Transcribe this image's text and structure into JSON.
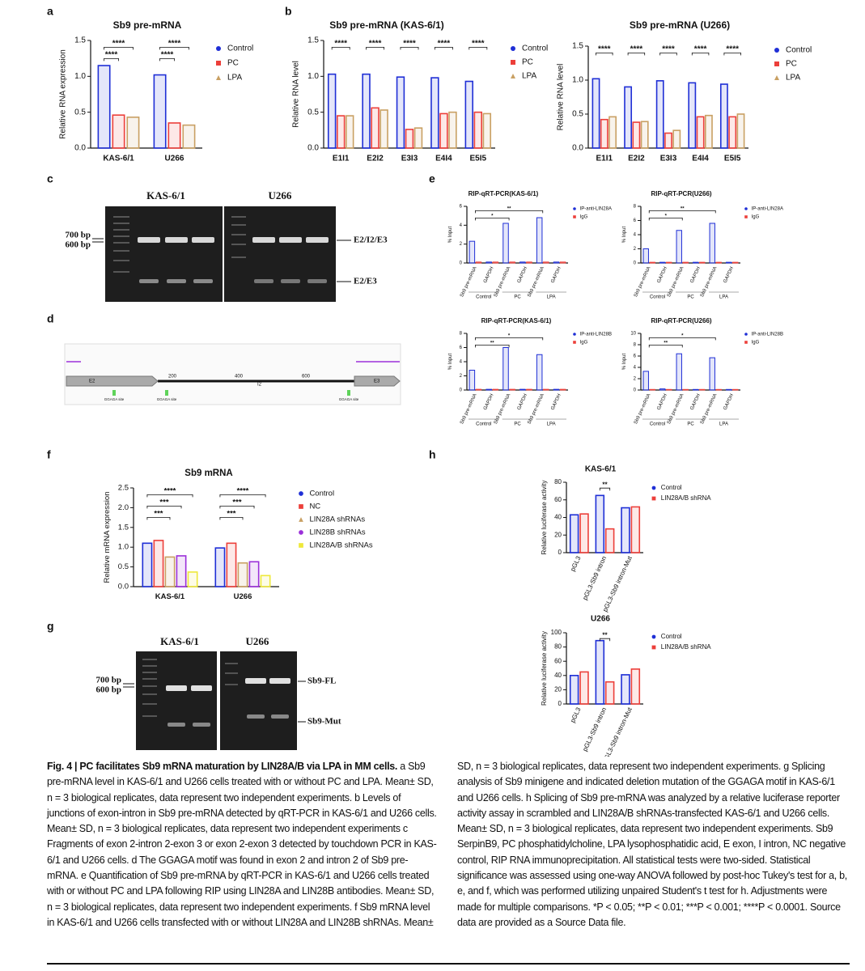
{
  "panel_labels": [
    "a",
    "b",
    "c",
    "d",
    "e",
    "f",
    "g",
    "h"
  ],
  "chart_data": [
    {
      "type": "bar",
      "title": "Sb9 pre-mRNA",
      "ylabel": "Relative RNA expression",
      "categories": [
        "KAS-6/1",
        "U266"
      ],
      "series": [
        {
          "name": "Control",
          "color": "#1f2fd6",
          "values": [
            1.15,
            1.02
          ]
        },
        {
          "name": "PC",
          "color": "#ec3f3a",
          "values": [
            0.46,
            0.35
          ]
        },
        {
          "name": "LPA",
          "color": "#c9a063",
          "values": [
            0.43,
            0.32
          ]
        }
      ],
      "ylim": [
        0,
        1.5
      ],
      "yticks": [
        {
          "value": 0,
          "label": "0.0"
        },
        0.5,
        {
          "value": 1,
          "label": "1.0"
        },
        1.5
      ],
      "annotations": [
        [
          "****",
          "****"
        ],
        [
          "****",
          "****"
        ]
      ]
    },
    {
      "type": "bar",
      "title": "Sb9 pre-mRNA (KAS-6/1)",
      "ylabel": "Relative RNA level",
      "categories": [
        "E1I1",
        "E2I2",
        "E3I3",
        "E4I4",
        "E5I5"
      ],
      "series": [
        {
          "name": "Control",
          "color": "#1f2fd6",
          "values": [
            1.03,
            1.03,
            0.99,
            0.98,
            0.93
          ]
        },
        {
          "name": "PC",
          "color": "#ec3f3a",
          "values": [
            0.45,
            0.56,
            0.26,
            0.48,
            0.5
          ]
        },
        {
          "name": "LPA",
          "color": "#c9a063",
          "values": [
            0.45,
            0.53,
            0.28,
            0.5,
            0.48
          ]
        }
      ],
      "ylim": [
        0,
        1.5
      ],
      "yticks": [
        {
          "value": 0,
          "label": "0.0"
        },
        0.5,
        {
          "value": 1,
          "label": "1.0"
        },
        1.5
      ],
      "annotations": [
        [
          "****"
        ],
        [
          "****"
        ],
        [
          "****"
        ],
        [
          "****"
        ],
        [
          "****"
        ]
      ]
    },
    {
      "type": "bar",
      "title": "Sb9 pre-mRNA (U266)",
      "ylabel": "Relative RNA level",
      "categories": [
        "E1I1",
        "E2I2",
        "E3I3",
        "E4I4",
        "E5I5"
      ],
      "series": [
        {
          "name": "Control",
          "color": "#1f2fd6",
          "values": [
            1.02,
            0.9,
            0.99,
            0.96,
            0.94
          ]
        },
        {
          "name": "PC",
          "color": "#ec3f3a",
          "values": [
            0.42,
            0.38,
            0.22,
            0.46,
            0.46
          ]
        },
        {
          "name": "LPA",
          "color": "#c9a063",
          "values": [
            0.46,
            0.39,
            0.26,
            0.48,
            0.5
          ]
        }
      ],
      "ylim": [
        0,
        1.5
      ],
      "yticks": [
        {
          "value": 0,
          "label": "0.0"
        },
        0.5,
        {
          "value": 1,
          "label": "1.0"
        },
        1.5
      ],
      "annotations": [
        [
          "****"
        ],
        [
          "****"
        ],
        [
          "****"
        ],
        [
          "****"
        ],
        [
          "****"
        ]
      ]
    },
    {
      "type": "bar",
      "title": "RIP-qRT-PCR(KAS-6/1)",
      "ylabel": "% Input",
      "categories": [
        "Sb9 pre-mRNA",
        "GAPDH",
        "Sb9 pre-mRNA",
        "GAPDH",
        "Sb9 pre-mRNA",
        "GAPDH"
      ],
      "groups": [
        "Control",
        "PC",
        "LPA"
      ],
      "series": [
        {
          "name": "IP-anti-LIN28A",
          "color": "#1f2fd6",
          "values": [
            2.3,
            0.1,
            4.2,
            0.1,
            4.8,
            0.1
          ]
        },
        {
          "name": "IgG",
          "color": "#ec3f3a",
          "values": [
            0.1,
            0.1,
            0.1,
            0.1,
            0.1,
            0.1
          ]
        }
      ],
      "ylim": [
        0,
        6
      ],
      "yticks": [
        0,
        2,
        4,
        6
      ],
      "annotations": [
        [
          "*",
          "**"
        ]
      ]
    },
    {
      "type": "bar",
      "title": "RIP-qRT-PCR(U266)",
      "ylabel": "% Input",
      "categories": [
        "Sb9 pre-mRNA",
        "GAPDH",
        "Sb9 pre-mRNA",
        "GAPDH",
        "Sb9 pre-mRNA",
        "GAPDH"
      ],
      "groups": [
        "Control",
        "PC",
        "LPA"
      ],
      "series": [
        {
          "name": "IP-anti-LIN28A",
          "color": "#1f2fd6",
          "values": [
            2.0,
            0.1,
            4.6,
            0.1,
            5.6,
            0.1
          ]
        },
        {
          "name": "IgG",
          "color": "#ec3f3a",
          "values": [
            0.1,
            0.1,
            0.1,
            0.1,
            0.1,
            0.1
          ]
        }
      ],
      "ylim": [
        0,
        8
      ],
      "yticks": [
        0,
        2,
        4,
        6,
        8
      ],
      "annotations": [
        [
          "*",
          "**"
        ]
      ]
    },
    {
      "type": "bar",
      "title": "RIP-qRT-PCR(KAS-6/1)",
      "ylabel": "% Input",
      "categories": [
        "Sb9 pre-mRNA",
        "GAPDH",
        "Sb9 pre-mRNA",
        "GAPDH",
        "Sb9 pre-mRNA",
        "GAPDH"
      ],
      "groups": [
        "Control",
        "PC",
        "LPA"
      ],
      "series": [
        {
          "name": "IP-anti-LIN28B",
          "color": "#1f2fd6",
          "values": [
            2.8,
            0.1,
            6.0,
            0.1,
            5.0,
            0.1
          ]
        },
        {
          "name": "IgG",
          "color": "#ec3f3a",
          "values": [
            0.1,
            0.1,
            0.1,
            0.1,
            0.1,
            0.1
          ]
        }
      ],
      "ylim": [
        0,
        8
      ],
      "yticks": [
        0,
        2,
        4,
        6,
        8
      ],
      "annotations": [
        [
          "**",
          "*"
        ]
      ]
    },
    {
      "type": "bar",
      "title": "RIP-qRT-PCR(U266)",
      "ylabel": "% Input",
      "categories": [
        "Sb9 pre-mRNA",
        "GAPDH",
        "Sb9 pre-mRNA",
        "GAPDH",
        "Sb9 pre-mRNA",
        "GAPDH"
      ],
      "groups": [
        "Control",
        "PC",
        "LPA"
      ],
      "series": [
        {
          "name": "IP-anti-LIN28B",
          "color": "#1f2fd6",
          "values": [
            3.3,
            0.2,
            6.4,
            0.1,
            5.7,
            0.1
          ]
        },
        {
          "name": "IgG",
          "color": "#ec3f3a",
          "values": [
            0.1,
            0.1,
            0.1,
            0.1,
            0.1,
            0.1
          ]
        }
      ],
      "ylim": [
        0,
        10
      ],
      "yticks": [
        0,
        2,
        4,
        6,
        8,
        10
      ],
      "annotations": [
        [
          "**",
          "*"
        ]
      ]
    },
    {
      "type": "bar",
      "title": "Sb9 mRNA",
      "ylabel": "Relative mRNA expression",
      "categories": [
        "KAS-6/1",
        "U266"
      ],
      "series": [
        {
          "name": "Control",
          "color": "#1f2fd6",
          "values": [
            1.1,
            0.98
          ]
        },
        {
          "name": "NC",
          "color": "#ec3f3a",
          "values": [
            1.17,
            1.1
          ]
        },
        {
          "name": "LIN28A shRNAs",
          "color": "#c9a063",
          "values": [
            0.75,
            0.6
          ]
        },
        {
          "name": "LIN28B shRNAs",
          "color": "#9b30d9",
          "values": [
            0.78,
            0.63
          ]
        },
        {
          "name": "LIN28A/B shRNAs",
          "color": "#eee83a",
          "values": [
            0.37,
            0.28
          ]
        }
      ],
      "ylim": [
        0,
        2.5
      ],
      "yticks": [
        {
          "value": 0,
          "label": "0.0"
        },
        0.5,
        {
          "value": 1,
          "label": "1.0"
        },
        1.5,
        {
          "value": 2,
          "label": "2.0"
        },
        2.5
      ],
      "annotations": [
        [
          "***",
          "***",
          "****"
        ],
        [
          "***",
          "***",
          "****"
        ]
      ]
    },
    {
      "type": "bar",
      "title": "KAS-6/1",
      "ylabel": "Relative luciferase activity",
      "categories": [
        "pGL3",
        "pGL3-Sb9 intron",
        "pGL3-Sb9 intron-Mut"
      ],
      "series": [
        {
          "name": "Control",
          "color": "#1f2fd6",
          "values": [
            43,
            65,
            51
          ]
        },
        {
          "name": "LIN28A/B shRNA",
          "color": "#ec3f3a",
          "values": [
            44,
            27,
            52
          ]
        }
      ],
      "ylim": [
        0,
        80
      ],
      "yticks": [
        0,
        20,
        40,
        60,
        80
      ],
      "annotations": [
        [],
        [
          "**"
        ],
        []
      ]
    },
    {
      "type": "bar",
      "title": "U266",
      "ylabel": "Relative luciferase activity",
      "categories": [
        "pGL3",
        "pGL3-Sb9 intron",
        "pGL3-Sb9 intron-Mut"
      ],
      "series": [
        {
          "name": "Control",
          "color": "#1f2fd6",
          "values": [
            40,
            89,
            41
          ]
        },
        {
          "name": "LIN28A/B shRNA",
          "color": "#ec3f3a",
          "values": [
            45,
            31,
            49
          ]
        }
      ],
      "ylim": [
        0,
        100
      ],
      "yticks": [
        0,
        20,
        40,
        60,
        80,
        100
      ],
      "annotations": [
        [],
        [
          "**"
        ],
        []
      ]
    }
  ],
  "gel_c": {
    "headers": [
      "KAS-6/1",
      "U266"
    ],
    "markers": [
      "700 bp",
      "600 bp"
    ],
    "bands": [
      "E2/I2/E3",
      "E2/E3"
    ]
  },
  "diagram_d": {
    "exons": [
      "E2",
      "E3"
    ],
    "intron": "I2",
    "positions": [
      "200",
      "400",
      "600"
    ],
    "site": "GGAGA site"
  },
  "gel_g": {
    "headers": [
      "KAS-6/1",
      "U266"
    ],
    "markers": [
      "700 bp",
      "600 bp"
    ],
    "bands": [
      "Sb9-FL",
      "Sb9-Mut"
    ]
  },
  "caption": {
    "title": "Fig. 4 | PC facilitates Sb9 mRNA maturation by LIN28A/B via LPA in MM cells.",
    "text": "a Sb9 pre-mRNA level in KAS-6/1 and U266 cells treated with or without PC and LPA. Mean± SD, n = 3 biological replicates, data represent two independent experiments. b Levels of junctions of exon-intron in Sb9 pre-mRNA detected by qRT-PCR in KAS-6/1 and U266 cells. Mean± SD, n = 3 biological replicates, data represent two independent experiments c Fragments of exon 2-intron 2-exon 3 or exon 2-exon 3 detected by touchdown PCR in KAS-6/1 and U266 cells. d The GGAGA motif was found in exon 2 and intron 2 of Sb9 pre-mRNA. e Quantification of Sb9 pre-mRNA by qRT-PCR in KAS-6/1 and U266 cells treated with or without PC and LPA following RIP using LIN28A and LIN28B antibodies. Mean± SD, n = 3 biological replicates, data represent two independent experiments. f Sb9 mRNA level in KAS-6/1 and U266 cells transfected with or without LIN28A and LIN28B shRNAs. Mean± SD, n = 3 biological replicates, data represent two independent experiments. g Splicing analysis of Sb9 minigene and indicated deletion mutation of the GGAGA motif in KAS-6/1 and U266 cells. h Splicing of Sb9 pre-mRNA was analyzed by a relative luciferase reporter activity assay in scrambled and LIN28A/B shRNAs-transfected KAS-6/1 and U266 cells. Mean± SD, n = 3 biological replicates, data represent two independent experiments. Sb9 SerpinB9, PC phosphatidylcholine, LPA lysophosphatidic acid, E exon, I intron, NC negative control, RIP RNA immunoprecipitation. All statistical tests were two-sided. Statistical significance was assessed using one-way ANOVA followed by post-hoc Tukey's test for a, b, e, and f, which was performed utilizing unpaired Student's t test for h. Adjustments were made for multiple comparisons. *P < 0.05; **P < 0.01; ***P < 0.001; ****P < 0.0001. Source data are provided as a Source Data file."
  }
}
